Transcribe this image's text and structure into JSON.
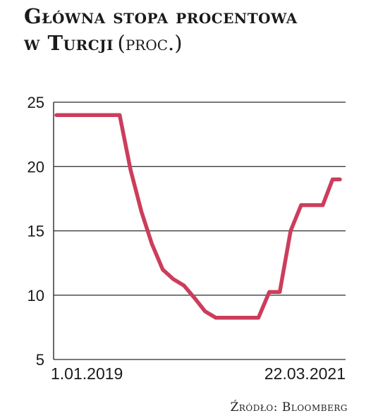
{
  "title_line1": "Główna stopa procentowa",
  "title_line2_main": "w Turcji",
  "title_unit": "(proc.)",
  "source": "Źródło: Bloomberg",
  "colors": {
    "line": "#cc3d5c",
    "grid": "#2a2a2a",
    "text": "#1a1a1a"
  },
  "chart_data": {
    "type": "line",
    "ylim": [
      5,
      25
    ],
    "yticks": [
      5,
      10,
      15,
      20,
      25
    ],
    "x_labels": [
      "1.01.2019",
      "22.03.2021"
    ],
    "grid": true,
    "series": [
      {
        "x": [
          "2019-01-01",
          "2019-02-01",
          "2019-03-01",
          "2019-04-01",
          "2019-05-01",
          "2019-06-01",
          "2019-07-01",
          "2019-08-01",
          "2019-09-01",
          "2019-10-01",
          "2019-11-01",
          "2019-12-01",
          "2020-01-01",
          "2020-02-01",
          "2020-03-01",
          "2020-04-01",
          "2020-05-01",
          "2020-06-01",
          "2020-07-01",
          "2020-08-01",
          "2020-09-01",
          "2020-10-01",
          "2020-11-01",
          "2020-12-01",
          "2021-01-01",
          "2021-02-01",
          "2021-03-01",
          "2021-03-22"
        ],
        "values": [
          24,
          24,
          24,
          24,
          24,
          24,
          24,
          19.75,
          16.5,
          14,
          12,
          11.25,
          10.75,
          9.75,
          8.75,
          8.25,
          8.25,
          8.25,
          8.25,
          8.25,
          10.25,
          10.25,
          15,
          17,
          17,
          17,
          19,
          19
        ]
      }
    ]
  }
}
